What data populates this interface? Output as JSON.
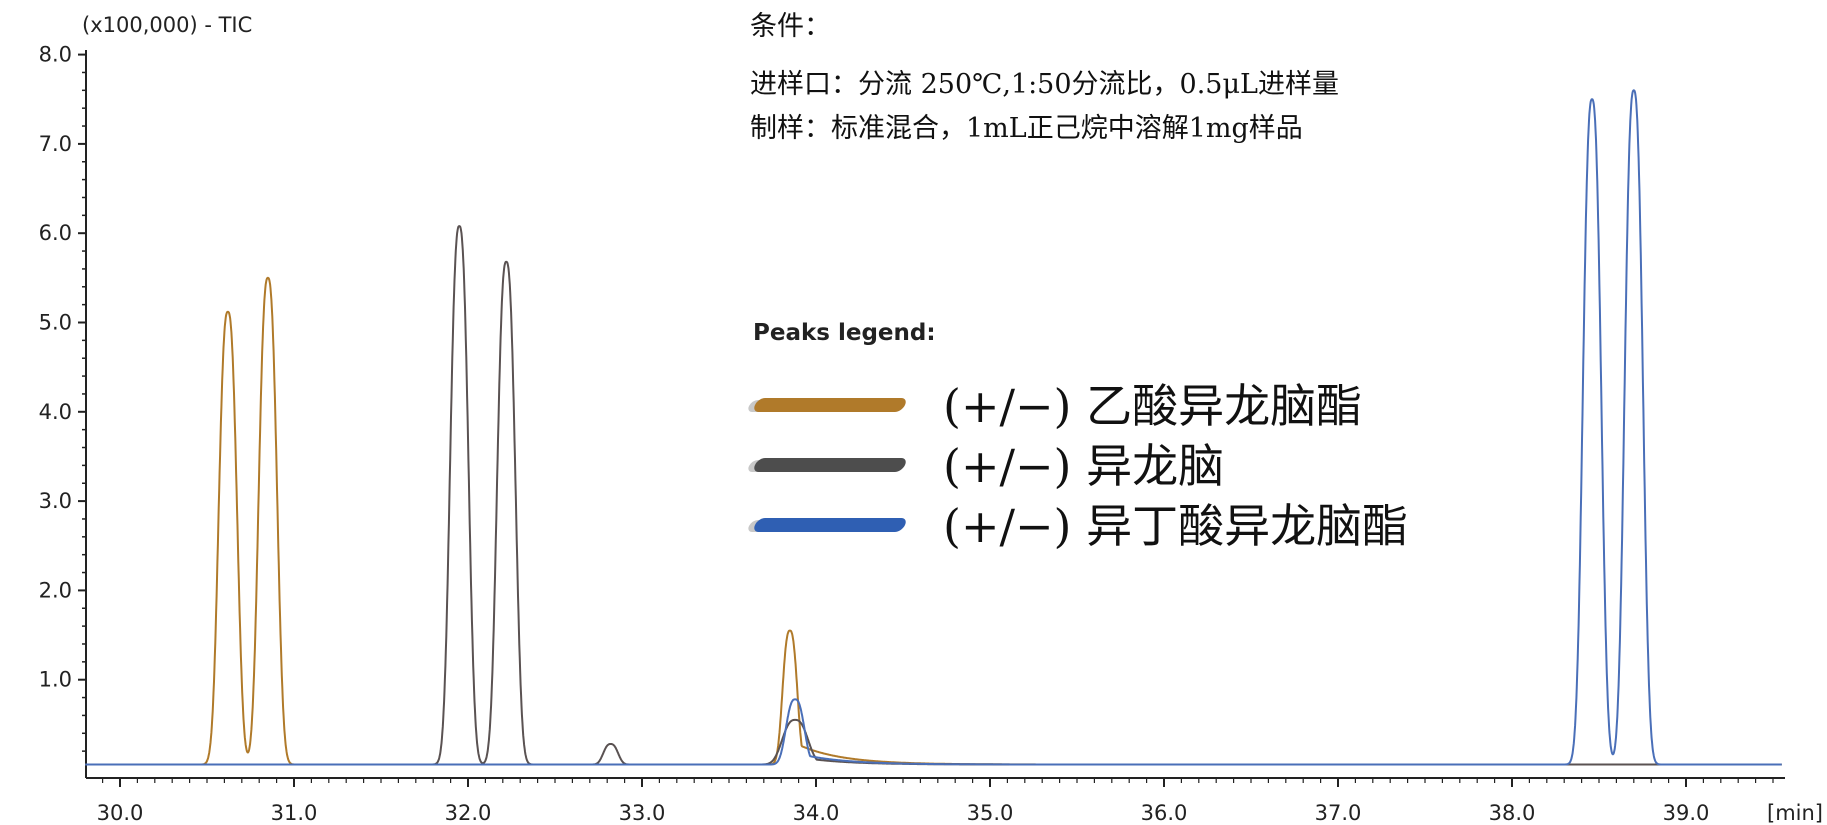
{
  "chart_data": {
    "type": "line",
    "y_unit_label": "(x100,000) - TIC",
    "x_unit_label": "[min]",
    "xlim": [
      29.8,
      39.55
    ],
    "ylim": [
      0.0,
      8.25
    ],
    "x_ticks": [
      30.0,
      31.0,
      32.0,
      33.0,
      34.0,
      35.0,
      36.0,
      37.0,
      38.0,
      39.0
    ],
    "x_tick_labels": [
      "30.0",
      "31.0",
      "32.0",
      "33.0",
      "34.0",
      "35.0",
      "36.0",
      "37.0",
      "38.0",
      "39.0"
    ],
    "y_ticks": [
      1.0,
      2.0,
      3.0,
      4.0,
      5.0,
      6.0,
      7.0,
      8.0
    ],
    "y_tick_labels": [
      "1.0",
      "2.0",
      "3.0",
      "4.0",
      "5.0",
      "6.0",
      "7.0",
      "8.0"
    ],
    "grid": false,
    "legend_title": "Peaks legend:",
    "legend_position": "center",
    "series": [
      {
        "name": "(+/−) 乙酸异龙脑酯",
        "color": "#b07a2a",
        "baseline": 0.05,
        "peaks": [
          {
            "x": 30.62,
            "y": 5.12,
            "width": 0.05
          },
          {
            "x": 30.85,
            "y": 5.5,
            "width": 0.05
          },
          {
            "x": 33.85,
            "y": 1.55,
            "width": 0.04
          }
        ]
      },
      {
        "name": "(+/−) 异龙脑",
        "color": "#5a5252",
        "baseline": 0.05,
        "peaks": [
          {
            "x": 31.95,
            "y": 6.08,
            "width": 0.05
          },
          {
            "x": 32.22,
            "y": 5.68,
            "width": 0.05
          },
          {
            "x": 32.82,
            "y": 0.28,
            "width": 0.04
          },
          {
            "x": 33.88,
            "y": 0.55,
            "width": 0.07
          }
        ]
      },
      {
        "name": "(+/−) 异丁酸异龙脑酯",
        "color": "#4a6fb8",
        "baseline": 0.05,
        "peaks": [
          {
            "x": 33.88,
            "y": 0.78,
            "width": 0.05
          },
          {
            "x": 38.46,
            "y": 7.5,
            "width": 0.05
          },
          {
            "x": 38.7,
            "y": 7.6,
            "width": 0.05
          }
        ]
      }
    ]
  },
  "conditions": {
    "title": "条件：",
    "line1": "进样口：分流 250℃,1:50分流比，0.5μL进样量",
    "line2": "制样：标准混合，1mL正己烷中溶解1mg样品"
  },
  "legend": {
    "title": "Peaks legend:",
    "items": [
      {
        "label": "(+/−) 乙酸异龙脑酯",
        "color": "#b07a2a"
      },
      {
        "label": "(+/−) 异龙脑",
        "color": "#4d4d4d"
      },
      {
        "label": "(+/−) 异丁酸异龙脑酯",
        "color": "#2f5fb3"
      }
    ]
  }
}
